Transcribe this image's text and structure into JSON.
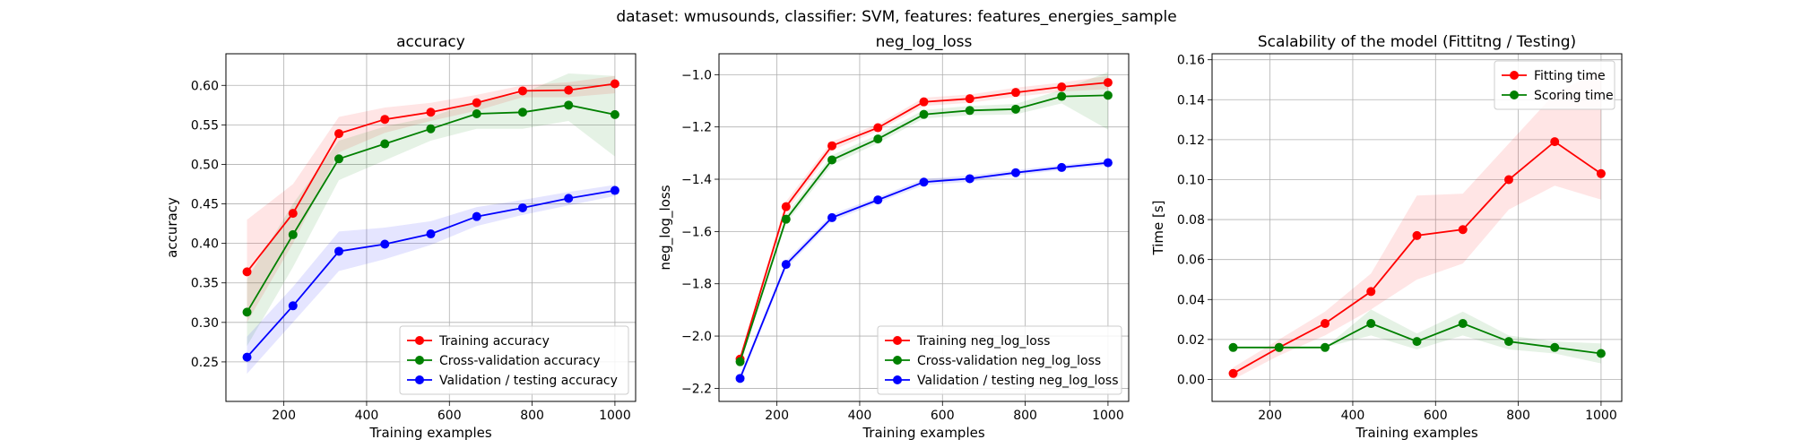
{
  "suptitle": "dataset: wmusounds, classifier: SVM, features: features_energies_sample",
  "colors": {
    "train": "#ff0000",
    "cv": "#008000",
    "test": "#0000ff",
    "grid": "#b0b0b0"
  },
  "chart_data": [
    {
      "type": "line",
      "title": "accuracy",
      "xlabel": "Training examples",
      "ylabel": "accuracy",
      "xlim": [
        60,
        1050
      ],
      "ylim": [
        0.2,
        0.64
      ],
      "xticks": [
        200,
        400,
        600,
        800,
        1000
      ],
      "yticks": [
        0.25,
        0.3,
        0.35,
        0.4,
        0.45,
        0.5,
        0.55,
        0.6
      ],
      "ytick_labels": [
        "0.25",
        "0.30",
        "0.35",
        "0.40",
        "0.45",
        "0.50",
        "0.55",
        "0.60"
      ],
      "legend_position": "lower-right",
      "x": [
        111,
        222,
        333,
        444,
        555,
        666,
        777,
        888,
        1000
      ],
      "series": [
        {
          "name": "Training accuracy",
          "color": "#ff0000",
          "values": [
            0.364,
            0.438,
            0.539,
            0.557,
            0.566,
            0.578,
            0.593,
            0.594,
            0.602
          ],
          "lower": [
            0.3,
            0.4,
            0.515,
            0.54,
            0.555,
            0.568,
            0.585,
            0.585,
            0.59
          ],
          "upper": [
            0.43,
            0.475,
            0.56,
            0.572,
            0.578,
            0.588,
            0.6,
            0.604,
            0.612
          ]
        },
        {
          "name": "Cross-validation accuracy",
          "color": "#008000",
          "values": [
            0.313,
            0.411,
            0.507,
            0.526,
            0.545,
            0.564,
            0.566,
            0.575,
            0.563
          ],
          "lower": [
            0.27,
            0.37,
            0.48,
            0.505,
            0.53,
            0.545,
            0.545,
            0.555,
            0.51
          ],
          "upper": [
            0.355,
            0.45,
            0.53,
            0.548,
            0.56,
            0.58,
            0.59,
            0.615,
            0.612
          ]
        },
        {
          "name": "Validation / testing accuracy",
          "color": "#0000ff",
          "values": [
            0.256,
            0.321,
            0.39,
            0.399,
            0.412,
            0.434,
            0.445,
            0.457,
            0.467
          ],
          "lower": [
            0.235,
            0.3,
            0.365,
            0.38,
            0.398,
            0.422,
            0.436,
            0.448,
            0.46
          ],
          "upper": [
            0.282,
            0.345,
            0.415,
            0.42,
            0.428,
            0.446,
            0.455,
            0.465,
            0.474
          ]
        }
      ]
    },
    {
      "type": "line",
      "title": "neg_log_loss",
      "xlabel": "Training examples",
      "ylabel": "neg_log_loss",
      "xlim": [
        60,
        1050
      ],
      "ylim": [
        -2.25,
        -0.92
      ],
      "xticks": [
        200,
        400,
        600,
        800,
        1000
      ],
      "yticks": [
        -2.2,
        -2.0,
        -1.8,
        -1.6,
        -1.4,
        -1.2,
        -1.0
      ],
      "ytick_labels": [
        "−2.2",
        "−2.0",
        "−1.8",
        "−1.6",
        "−1.4",
        "−1.2",
        "−1.0"
      ],
      "legend_position": "lower-right",
      "x": [
        111,
        222,
        333,
        444,
        555,
        666,
        777,
        888,
        1000
      ],
      "series": [
        {
          "name": "Training neg_log_loss",
          "color": "#ff0000",
          "values": [
            -2.088,
            -1.505,
            -1.272,
            -1.203,
            -1.104,
            -1.092,
            -1.068,
            -1.047,
            -1.03
          ],
          "lower": [
            -2.1,
            -1.525,
            -1.29,
            -1.215,
            -1.12,
            -1.108,
            -1.085,
            -1.065,
            -1.055
          ],
          "upper": [
            -2.075,
            -1.485,
            -1.255,
            -1.19,
            -1.088,
            -1.076,
            -1.05,
            -1.03,
            -1.005
          ]
        },
        {
          "name": "Cross-validation neg_log_loss",
          "color": "#008000",
          "values": [
            -2.098,
            -1.553,
            -1.326,
            -1.246,
            -1.152,
            -1.137,
            -1.132,
            -1.083,
            -1.079
          ],
          "lower": [
            -2.11,
            -1.57,
            -1.345,
            -1.262,
            -1.168,
            -1.155,
            -1.152,
            -1.11,
            -1.21
          ],
          "upper": [
            -2.085,
            -1.535,
            -1.308,
            -1.23,
            -1.135,
            -1.12,
            -1.112,
            -1.058,
            -0.99
          ]
        },
        {
          "name": "Validation / testing neg_log_loss",
          "color": "#0000ff",
          "values": [
            -2.162,
            -1.726,
            -1.547,
            -1.479,
            -1.411,
            -1.398,
            -1.375,
            -1.355,
            -1.337
          ],
          "lower": [
            -2.175,
            -1.74,
            -1.56,
            -1.49,
            -1.423,
            -1.41,
            -1.385,
            -1.365,
            -1.347
          ],
          "upper": [
            -2.15,
            -1.712,
            -1.534,
            -1.468,
            -1.399,
            -1.386,
            -1.365,
            -1.345,
            -1.327
          ]
        }
      ]
    },
    {
      "type": "line",
      "title": "Scalability of the model (Fittitng / Testing)",
      "xlabel": "Training examples",
      "ylabel": "Time [s]",
      "xlim": [
        60,
        1050
      ],
      "ylim": [
        -0.011,
        0.163
      ],
      "xticks": [
        200,
        400,
        600,
        800,
        1000
      ],
      "yticks": [
        0.0,
        0.02,
        0.04,
        0.06,
        0.08,
        0.1,
        0.12,
        0.14,
        0.16
      ],
      "ytick_labels": [
        "0.00",
        "0.02",
        "0.04",
        "0.06",
        "0.08",
        "0.10",
        "0.12",
        "0.14",
        "0.16"
      ],
      "legend_position": "upper-right",
      "x": [
        111,
        222,
        333,
        444,
        555,
        666,
        777,
        888,
        1000
      ],
      "series": [
        {
          "name": "Fitting time",
          "color": "#ff0000",
          "values": [
            0.003,
            0.016,
            0.028,
            0.044,
            0.072,
            0.075,
            0.1,
            0.119,
            0.103
          ],
          "lower": [
            0.0,
            0.012,
            0.022,
            0.035,
            0.05,
            0.058,
            0.085,
            0.097,
            0.09
          ],
          "upper": [
            0.006,
            0.02,
            0.034,
            0.053,
            0.092,
            0.093,
            0.118,
            0.143,
            0.155
          ]
        },
        {
          "name": "Scoring time",
          "color": "#008000",
          "values": [
            0.016,
            0.016,
            0.016,
            0.028,
            0.019,
            0.028,
            0.019,
            0.016,
            0.013
          ],
          "lower": [
            0.016,
            0.016,
            0.016,
            0.022,
            0.015,
            0.022,
            0.015,
            0.013,
            0.008
          ],
          "upper": [
            0.016,
            0.016,
            0.016,
            0.035,
            0.023,
            0.034,
            0.022,
            0.019,
            0.018
          ]
        }
      ]
    }
  ]
}
